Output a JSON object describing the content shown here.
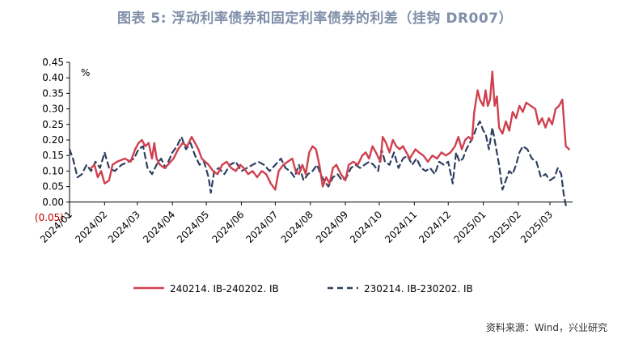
{
  "title": "图表 5:  浮动利率债券和固定利率债券的利差（挂钩 DR007）",
  "source": "资料来源：Wind，兴业研究",
  "chart_data": {
    "type": "line",
    "unit_label": "%",
    "ylim": [
      -0.05,
      0.45
    ],
    "yticks": [
      {
        "value": 0.45,
        "label": "0.45"
      },
      {
        "value": 0.4,
        "label": "0.40"
      },
      {
        "value": 0.35,
        "label": "0.35"
      },
      {
        "value": 0.3,
        "label": "0.30"
      },
      {
        "value": 0.25,
        "label": "0.25"
      },
      {
        "value": 0.2,
        "label": "0.20"
      },
      {
        "value": 0.15,
        "label": "0.15"
      },
      {
        "value": 0.1,
        "label": "0.10"
      },
      {
        "value": 0.05,
        "label": "0.05"
      },
      {
        "value": 0.0,
        "label": "0.00"
      },
      {
        "value": -0.05,
        "label": "(0.05)",
        "negative": true
      }
    ],
    "xticks": [
      "2024/01",
      "2024/02",
      "2024/03",
      "2024/04",
      "2024/05",
      "2024/06",
      "2024/07",
      "2024/08",
      "2024/09",
      "2024/10",
      "2024/11",
      "2024/12",
      "2025/01",
      "2025/02",
      "2025/03"
    ],
    "xlim": [
      "2024/01",
      "2025/03"
    ],
    "series": [
      {
        "name": "240214. IB-240202. IB",
        "color": "#d0404f",
        "style": "solid",
        "points": [
          [
            "2024/01/20",
            0.11
          ],
          [
            "2024/01/23",
            0.12
          ],
          [
            "2024/01/26",
            0.08
          ],
          [
            "2024/01/29",
            0.1
          ],
          [
            "2024/02/01",
            0.06
          ],
          [
            "2024/02/05",
            0.07
          ],
          [
            "2024/02/08",
            0.12
          ],
          [
            "2024/02/12",
            0.13
          ],
          [
            "2024/02/19",
            0.14
          ],
          [
            "2024/02/24",
            0.13
          ],
          [
            "2024/02/28",
            0.17
          ],
          [
            "2024/03/02",
            0.19
          ],
          [
            "2024/03/05",
            0.2
          ],
          [
            "2024/03/08",
            0.18
          ],
          [
            "2024/03/11",
            0.19
          ],
          [
            "2024/03/14",
            0.14
          ],
          [
            "2024/03/16",
            0.19
          ],
          [
            "2024/03/18",
            0.14
          ],
          [
            "2024/03/21",
            0.12
          ],
          [
            "2024/03/25",
            0.11
          ],
          [
            "2024/03/28",
            0.12
          ],
          [
            "2024/04/02",
            0.14
          ],
          [
            "2024/04/06",
            0.17
          ],
          [
            "2024/04/10",
            0.19
          ],
          [
            "2024/04/14",
            0.18
          ],
          [
            "2024/04/18",
            0.21
          ],
          [
            "2024/04/21",
            0.19
          ],
          [
            "2024/04/24",
            0.17
          ],
          [
            "2024/04/27",
            0.14
          ],
          [
            "2024/04/30",
            0.13
          ],
          [
            "2024/05/03",
            0.12
          ],
          [
            "2024/05/07",
            0.1
          ],
          [
            "2024/05/11",
            0.09
          ],
          [
            "2024/05/15",
            0.12
          ],
          [
            "2024/05/19",
            0.13
          ],
          [
            "2024/05/23",
            0.11
          ],
          [
            "2024/05/27",
            0.1
          ],
          [
            "2024/05/31",
            0.12
          ],
          [
            "2024/06/03",
            0.11
          ],
          [
            "2024/06/07",
            0.09
          ],
          [
            "2024/06/11",
            0.1
          ],
          [
            "2024/06/15",
            0.08
          ],
          [
            "2024/06/19",
            0.1
          ],
          [
            "2024/06/23",
            0.09
          ],
          [
            "2024/06/27",
            0.06
          ],
          [
            "2024/07/01",
            0.04
          ],
          [
            "2024/07/04",
            0.1
          ],
          [
            "2024/07/08",
            0.12
          ],
          [
            "2024/07/12",
            0.13
          ],
          [
            "2024/07/16",
            0.14
          ],
          [
            "2024/07/19",
            0.1
          ],
          [
            "2024/07/22",
            0.09
          ],
          [
            "2024/07/25",
            0.12
          ],
          [
            "2024/07/28",
            0.09
          ],
          [
            "2024/07/31",
            0.16
          ],
          [
            "2024/08/03",
            0.18
          ],
          [
            "2024/08/06",
            0.17
          ],
          [
            "2024/08/09",
            0.12
          ],
          [
            "2024/08/12",
            0.05
          ],
          [
            "2024/08/15",
            0.08
          ],
          [
            "2024/08/18",
            0.06
          ],
          [
            "2024/08/21",
            0.11
          ],
          [
            "2024/08/24",
            0.12
          ],
          [
            "2024/08/28",
            0.09
          ],
          [
            "2024/09/01",
            0.07
          ],
          [
            "2024/09/04",
            0.12
          ],
          [
            "2024/09/08",
            0.13
          ],
          [
            "2024/09/12",
            0.12
          ],
          [
            "2024/09/16",
            0.15
          ],
          [
            "2024/09/19",
            0.16
          ],
          [
            "2024/09/22",
            0.14
          ],
          [
            "2024/09/25",
            0.18
          ],
          [
            "2024/09/28",
            0.16
          ],
          [
            "2024/10/02",
            0.13
          ],
          [
            "2024/10/04",
            0.21
          ],
          [
            "2024/10/07",
            0.19
          ],
          [
            "2024/10/10",
            0.16
          ],
          [
            "2024/10/13",
            0.2
          ],
          [
            "2024/10/16",
            0.18
          ],
          [
            "2024/10/19",
            0.17
          ],
          [
            "2024/10/22",
            0.18
          ],
          [
            "2024/10/25",
            0.16
          ],
          [
            "2024/10/28",
            0.14
          ],
          [
            "2024/11/02",
            0.17
          ],
          [
            "2024/11/05",
            0.16
          ],
          [
            "2024/11/09",
            0.15
          ],
          [
            "2024/11/13",
            0.13
          ],
          [
            "2024/11/17",
            0.15
          ],
          [
            "2024/11/21",
            0.14
          ],
          [
            "2024/11/25",
            0.16
          ],
          [
            "2024/11/29",
            0.15
          ],
          [
            "2024/12/03",
            0.16
          ],
          [
            "2024/12/07",
            0.18
          ],
          [
            "2024/12/10",
            0.21
          ],
          [
            "2024/12/13",
            0.17
          ],
          [
            "2024/12/16",
            0.2
          ],
          [
            "2024/12/19",
            0.21
          ],
          [
            "2024/12/22",
            0.2
          ],
          [
            "2024/12/24",
            0.29
          ],
          [
            "2024/12/27",
            0.36
          ],
          [
            "2024/12/29",
            0.33
          ],
          [
            "2025/01/01",
            0.31
          ],
          [
            "2025/01/03",
            0.36
          ],
          [
            "2025/01/05",
            0.31
          ],
          [
            "2025/01/07",
            0.33
          ],
          [
            "2025/01/09",
            0.42
          ],
          [
            "2025/01/11",
            0.31
          ],
          [
            "2025/01/13",
            0.34
          ],
          [
            "2025/01/15",
            0.24
          ],
          [
            "2025/01/18",
            0.22
          ],
          [
            "2025/01/21",
            0.26
          ],
          [
            "2025/01/24",
            0.23
          ],
          [
            "2025/01/27",
            0.29
          ],
          [
            "2025/01/30",
            0.27
          ],
          [
            "2025/02/02",
            0.31
          ],
          [
            "2025/02/05",
            0.29
          ],
          [
            "2025/02/08",
            0.32
          ],
          [
            "2025/02/12",
            0.31
          ],
          [
            "2025/02/16",
            0.3
          ],
          [
            "2025/02/19",
            0.25
          ],
          [
            "2025/02/22",
            0.27
          ],
          [
            "2025/02/25",
            0.24
          ],
          [
            "2025/02/28",
            0.27
          ],
          [
            "2025/03/03",
            0.25
          ],
          [
            "2025/03/06",
            0.3
          ],
          [
            "2025/03/09",
            0.31
          ],
          [
            "2025/03/12",
            0.33
          ],
          [
            "2025/03/15",
            0.18
          ],
          [
            "2025/03/18",
            0.17
          ]
        ]
      },
      {
        "name": "230214. IB-230202. IB",
        "color": "#2f3f5f",
        "style": "dashed",
        "points": [
          [
            "2024/01/01",
            0.17
          ],
          [
            "2024/01/04",
            0.14
          ],
          [
            "2024/01/08",
            0.08
          ],
          [
            "2024/01/12",
            0.09
          ],
          [
            "2024/01/16",
            0.12
          ],
          [
            "2024/01/20",
            0.1
          ],
          [
            "2024/01/24",
            0.13
          ],
          [
            "2024/01/28",
            0.11
          ],
          [
            "2024/02/01",
            0.16
          ],
          [
            "2024/02/05",
            0.11
          ],
          [
            "2024/02/10",
            0.1
          ],
          [
            "2024/02/16",
            0.12
          ],
          [
            "2024/02/22",
            0.13
          ],
          [
            "2024/02/27",
            0.14
          ],
          [
            "2024/03/02",
            0.17
          ],
          [
            "2024/03/06",
            0.18
          ],
          [
            "2024/03/10",
            0.11
          ],
          [
            "2024/03/14",
            0.09
          ],
          [
            "2024/03/18",
            0.12
          ],
          [
            "2024/03/22",
            0.14
          ],
          [
            "2024/03/26",
            0.11
          ],
          [
            "2024/04/01",
            0.16
          ],
          [
            "2024/04/05",
            0.18
          ],
          [
            "2024/04/09",
            0.21
          ],
          [
            "2024/04/13",
            0.17
          ],
          [
            "2024/04/17",
            0.19
          ],
          [
            "2024/04/21",
            0.15
          ],
          [
            "2024/04/25",
            0.12
          ],
          [
            "2024/04/29",
            0.13
          ],
          [
            "2024/05/03",
            0.08
          ],
          [
            "2024/05/05",
            0.03
          ],
          [
            "2024/05/08",
            0.1
          ],
          [
            "2024/05/12",
            0.11
          ],
          [
            "2024/05/17",
            0.09
          ],
          [
            "2024/05/22",
            0.12
          ],
          [
            "2024/05/27",
            0.13
          ],
          [
            "2024/06/01",
            0.1
          ],
          [
            "2024/06/06",
            0.11
          ],
          [
            "2024/06/11",
            0.12
          ],
          [
            "2024/06/16",
            0.13
          ],
          [
            "2024/06/21",
            0.12
          ],
          [
            "2024/06/26",
            0.1
          ],
          [
            "2024/07/01",
            0.12
          ],
          [
            "2024/07/06",
            0.14
          ],
          [
            "2024/07/10",
            0.11
          ],
          [
            "2024/07/14",
            0.1
          ],
          [
            "2024/07/18",
            0.08
          ],
          [
            "2024/07/22",
            0.12
          ],
          [
            "2024/07/26",
            0.07
          ],
          [
            "2024/07/30",
            0.09
          ],
          [
            "2024/08/03",
            0.1
          ],
          [
            "2024/08/07",
            0.12
          ],
          [
            "2024/08/10",
            0.09
          ],
          [
            "2024/08/13",
            0.07
          ],
          [
            "2024/08/17",
            0.05
          ],
          [
            "2024/08/21",
            0.08
          ],
          [
            "2024/08/25",
            0.09
          ],
          [
            "2024/08/29",
            0.07
          ],
          [
            "2024/09/02",
            0.08
          ],
          [
            "2024/09/06",
            0.11
          ],
          [
            "2024/09/10",
            0.12
          ],
          [
            "2024/09/14",
            0.11
          ],
          [
            "2024/09/18",
            0.12
          ],
          [
            "2024/09/22",
            0.13
          ],
          [
            "2024/09/26",
            0.12
          ],
          [
            "2024/09/30",
            0.1
          ],
          [
            "2024/10/03",
            0.17
          ],
          [
            "2024/10/06",
            0.13
          ],
          [
            "2024/10/10",
            0.12
          ],
          [
            "2024/10/14",
            0.16
          ],
          [
            "2024/10/18",
            0.11
          ],
          [
            "2024/10/22",
            0.14
          ],
          [
            "2024/10/26",
            0.15
          ],
          [
            "2024/10/30",
            0.12
          ],
          [
            "2024/11/03",
            0.14
          ],
          [
            "2024/11/07",
            0.11
          ],
          [
            "2024/11/11",
            0.1
          ],
          [
            "2024/11/15",
            0.11
          ],
          [
            "2024/11/19",
            0.09
          ],
          [
            "2024/11/23",
            0.13
          ],
          [
            "2024/11/27",
            0.12
          ],
          [
            "2024/12/01",
            0.13
          ],
          [
            "2024/12/05",
            0.06
          ],
          [
            "2024/12/08",
            0.16
          ],
          [
            "2024/12/11",
            0.13
          ],
          [
            "2024/12/14",
            0.14
          ],
          [
            "2024/12/17",
            0.17
          ],
          [
            "2024/12/20",
            0.19
          ],
          [
            "2024/12/23",
            0.21
          ],
          [
            "2024/12/26",
            0.24
          ],
          [
            "2024/12/29",
            0.26
          ],
          [
            "2025/01/01",
            0.23
          ],
          [
            "2025/01/03",
            0.22
          ],
          [
            "2025/01/06",
            0.17
          ],
          [
            "2025/01/09",
            0.24
          ],
          [
            "2025/01/12",
            0.18
          ],
          [
            "2025/01/15",
            0.12
          ],
          [
            "2025/01/18",
            0.04
          ],
          [
            "2025/01/21",
            0.07
          ],
          [
            "2025/01/24",
            0.1
          ],
          [
            "2025/01/27",
            0.09
          ],
          [
            "2025/01/30",
            0.12
          ],
          [
            "2025/02/02",
            0.16
          ],
          [
            "2025/02/05",
            0.18
          ],
          [
            "2025/02/09",
            0.17
          ],
          [
            "2025/02/13",
            0.14
          ],
          [
            "2025/02/17",
            0.13
          ],
          [
            "2025/02/21",
            0.08
          ],
          [
            "2025/02/25",
            0.09
          ],
          [
            "2025/03/01",
            0.07
          ],
          [
            "2025/03/05",
            0.08
          ],
          [
            "2025/03/08",
            0.11
          ],
          [
            "2025/03/11",
            0.09
          ],
          [
            "2025/03/13",
            0.03
          ],
          [
            "2025/03/15",
            -0.01
          ],
          [
            "2025/03/18",
            -0.01
          ]
        ]
      }
    ]
  }
}
